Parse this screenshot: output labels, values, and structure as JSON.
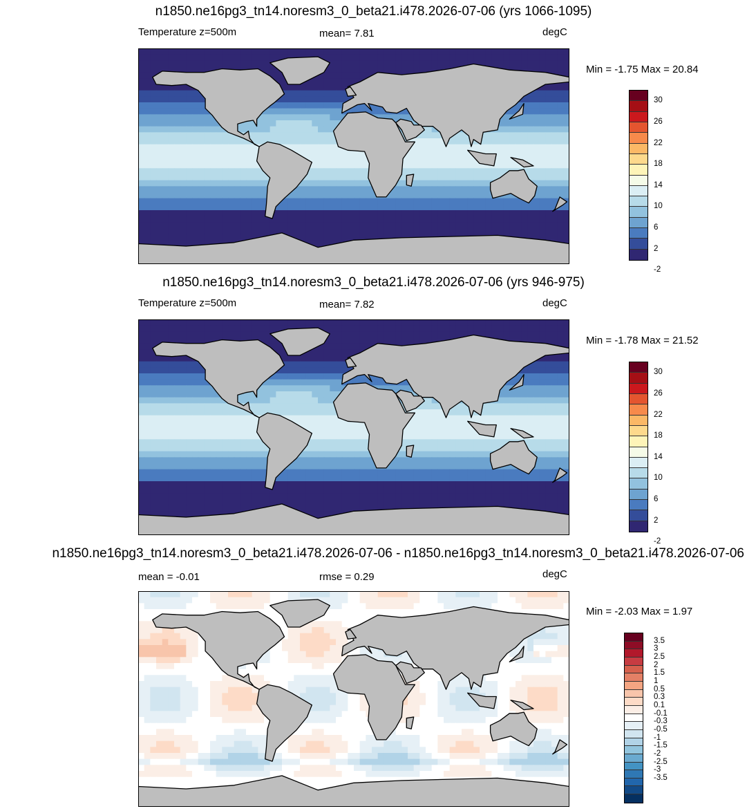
{
  "panels": [
    {
      "title": "n1850.ne16pg3_tn14.noresm3_0_beta21.i478.2026-07-06 (yrs 1066-1095)",
      "left_label": "Temperature z=500m",
      "center_label": "mean=   7.81",
      "units": "degC",
      "minmax": "Min =  -1.75 Max =  20.84",
      "colorbar": {
        "labels": [
          "30",
          "26",
          "22",
          "18",
          "14",
          "10",
          "6",
          "2",
          "-2"
        ],
        "colors": [
          "#67001f",
          "#a50f15",
          "#cb181d",
          "#e4552f",
          "#f78a4b",
          "#fbb866",
          "#fdd98c",
          "#fef4b8",
          "#f5fbe8",
          "#dbeef4",
          "#b7dbe9",
          "#92c2de",
          "#6ea3d0",
          "#4a7bbf",
          "#344d9a",
          "#302772"
        ]
      }
    },
    {
      "title": "n1850.ne16pg3_tn14.noresm3_0_beta21.i478.2026-07-06 (yrs 946-975)",
      "left_label": "Temperature z=500m",
      "center_label": "mean=   7.82",
      "units": "degC",
      "minmax": "Min =  -1.78 Max =  21.52",
      "colorbar": {
        "labels": [
          "30",
          "26",
          "22",
          "18",
          "14",
          "10",
          "6",
          "2",
          "-2"
        ],
        "colors": [
          "#67001f",
          "#a50f15",
          "#cb181d",
          "#e4552f",
          "#f78a4b",
          "#fbb866",
          "#fdd98c",
          "#fef4b8",
          "#f5fbe8",
          "#dbeef4",
          "#b7dbe9",
          "#92c2de",
          "#6ea3d0",
          "#4a7bbf",
          "#344d9a",
          "#302772"
        ]
      }
    },
    {
      "title": "n1850.ne16pg3_tn14.noresm3_0_beta21.i478.2026-07-06 - n1850.ne16pg3_tn14.noresm3_0_beta21.i478.2026-07-06",
      "left_label": "mean =  -0.01",
      "center_label": "rmse =   0.29",
      "units": "degC",
      "minmax": "Min =  -2.03 Max =   1.97",
      "colorbar": {
        "labels": [
          "3.5",
          "3",
          "2.5",
          "2",
          "1.5",
          "1",
          "0.5",
          "0.3",
          "0.1",
          "-0.1",
          "-0.3",
          "-0.5",
          "-1",
          "-1.5",
          "-2",
          "-2.5",
          "-3",
          "-3.5"
        ],
        "colors": [
          "#67001f",
          "#8e0d26",
          "#b2182b",
          "#c73c42",
          "#d6604d",
          "#e48066",
          "#f4a582",
          "#f8c5ab",
          "#fddbc7",
          "#fbeee6",
          "#ffffff",
          "#e6f0f6",
          "#d1e5f0",
          "#b1d3e7",
          "#92c5de",
          "#6aaad0",
          "#4393c3",
          "#2f78b4",
          "#2166ac",
          "#124a87",
          "#053061"
        ]
      }
    }
  ],
  "map_colors": {
    "land": "#bebebe",
    "coast": "#000000"
  }
}
